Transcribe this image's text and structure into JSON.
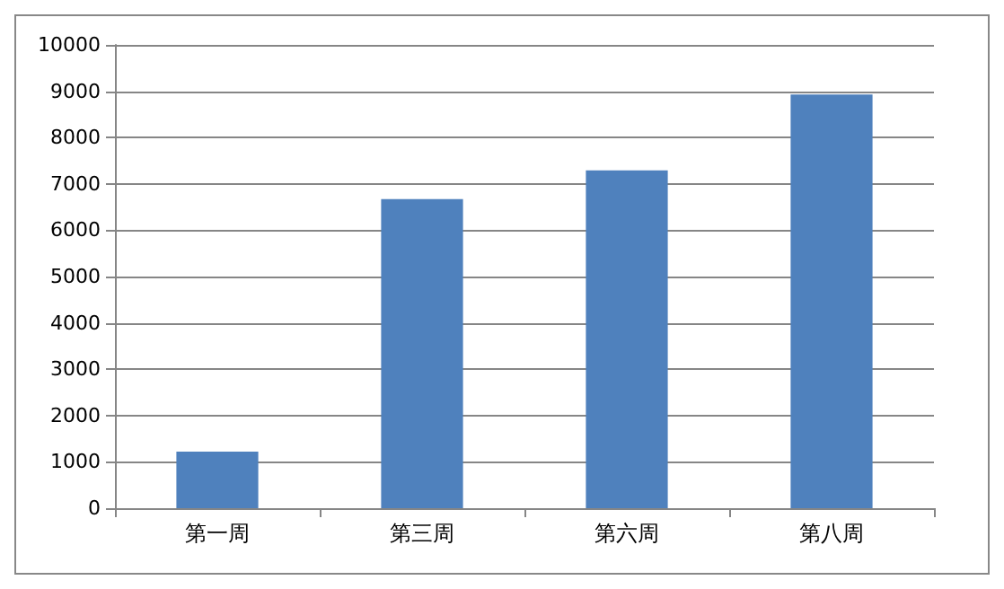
{
  "chart_data": {
    "type": "bar",
    "categories": [
      "第一周",
      "第三周",
      "第六周",
      "第八周"
    ],
    "values": [
      1220,
      6670,
      7290,
      8930
    ],
    "color": "#4f81bd",
    "ylim": [
      0,
      10000
    ],
    "yticks": [
      0,
      1000,
      2000,
      3000,
      4000,
      5000,
      6000,
      7000,
      8000,
      9000,
      10000
    ],
    "grid": "y"
  }
}
